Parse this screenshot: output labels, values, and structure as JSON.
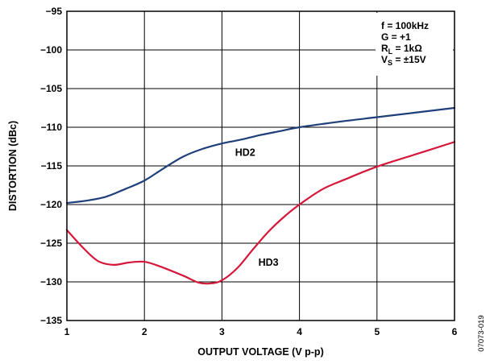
{
  "chart_data": {
    "type": "line",
    "xlabel": "OUTPUT VOLTAGE (V p-p)",
    "ylabel": "DISTORTION (dBc)",
    "xlim": [
      1,
      6
    ],
    "ylim": [
      -135,
      -95
    ],
    "x_ticks": [
      "1",
      "2",
      "3",
      "4",
      "5",
      "6"
    ],
    "y_ticks": [
      "−95",
      "−100",
      "−105",
      "−110",
      "−115",
      "−120",
      "−125",
      "−130",
      "−135"
    ],
    "grid": true,
    "conditions": [
      {
        "main": "f = 100kHz",
        "sub": "",
        "rest": ""
      },
      {
        "main": "G = +1",
        "sub": "",
        "rest": ""
      },
      {
        "main": "R",
        "sub": "L",
        "rest": " = 1kΩ"
      },
      {
        "main": "V",
        "sub": "S",
        "rest": " = ±15V"
      }
    ],
    "figure_id": "07073-019",
    "series": [
      {
        "name": "HD2",
        "color": "#1f3f7a",
        "x": [
          1.0,
          1.25,
          1.5,
          1.75,
          2.0,
          2.25,
          2.5,
          2.75,
          3.0,
          3.25,
          3.5,
          3.75,
          4.0,
          4.5,
          5.0,
          5.5,
          6.0
        ],
        "y": [
          -119.8,
          -119.5,
          -119.0,
          -118.0,
          -116.9,
          -115.3,
          -113.8,
          -112.8,
          -112.1,
          -111.6,
          -111.0,
          -110.5,
          -110.0,
          -109.3,
          -108.7,
          -108.1,
          -107.5
        ]
      },
      {
        "name": "HD3",
        "color": "#d4173a",
        "x": [
          1.0,
          1.2,
          1.4,
          1.6,
          1.8,
          2.0,
          2.2,
          2.5,
          2.7,
          2.85,
          3.0,
          3.2,
          3.4,
          3.6,
          3.8,
          4.0,
          4.3,
          4.6,
          5.0,
          5.5,
          6.0
        ],
        "y": [
          -123.3,
          -125.5,
          -127.3,
          -127.8,
          -127.5,
          -127.4,
          -128.0,
          -129.2,
          -130.1,
          -130.2,
          -129.8,
          -128.2,
          -125.8,
          -123.5,
          -121.6,
          -120.0,
          -118.0,
          -116.7,
          -115.1,
          -113.5,
          -111.9
        ]
      }
    ]
  }
}
